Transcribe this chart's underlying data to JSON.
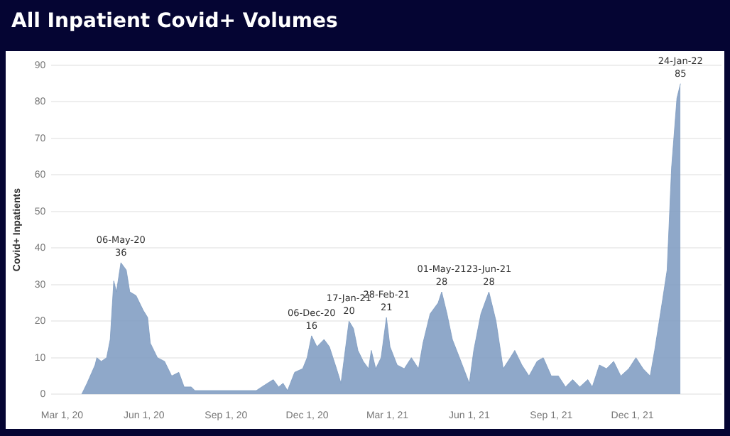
{
  "chart_data": {
    "type": "area",
    "title": "All Inpatient Covid+ Volumes",
    "ylabel": "Covid+ Inpatients",
    "x": [
      "2020-03-23",
      "2020-03-29",
      "2020-04-07",
      "2020-04-09",
      "2020-04-14",
      "2020-04-20",
      "2020-04-24",
      "2020-04-28",
      "2020-05-01",
      "2020-05-06",
      "2020-05-12",
      "2020-05-16",
      "2020-05-23",
      "2020-05-31",
      "2020-06-05",
      "2020-06-08",
      "2020-06-16",
      "2020-06-24",
      "2020-07-02",
      "2020-07-10",
      "2020-07-16",
      "2020-07-24",
      "2020-07-28",
      "2020-10-05",
      "2020-10-11",
      "2020-10-24",
      "2020-10-30",
      "2020-11-04",
      "2020-11-09",
      "2020-11-17",
      "2020-11-26",
      "2020-12-01",
      "2020-12-06",
      "2020-12-12",
      "2020-12-20",
      "2020-12-26",
      "2021-01-03",
      "2021-01-08",
      "2021-01-17",
      "2021-01-22",
      "2021-01-27",
      "2021-02-02",
      "2021-02-08",
      "2021-02-11",
      "2021-02-16",
      "2021-02-22",
      "2021-02-28",
      "2021-03-04",
      "2021-03-12",
      "2021-03-20",
      "2021-03-28",
      "2021-04-05",
      "2021-04-10",
      "2021-04-18",
      "2021-04-27",
      "2021-05-01",
      "2021-05-07",
      "2021-05-13",
      "2021-05-21",
      "2021-06-01",
      "2021-06-06",
      "2021-06-14",
      "2021-06-23",
      "2021-07-01",
      "2021-07-09",
      "2021-07-17",
      "2021-07-22",
      "2021-07-30",
      "2021-08-07",
      "2021-08-16",
      "2021-08-23",
      "2021-09-01",
      "2021-09-09",
      "2021-09-17",
      "2021-09-25",
      "2021-10-03",
      "2021-10-12",
      "2021-10-17",
      "2021-10-25",
      "2021-11-02",
      "2021-11-10",
      "2021-11-18",
      "2021-11-27",
      "2021-12-05",
      "2021-12-13",
      "2021-12-21",
      "2021-12-26",
      "2022-01-04",
      "2022-01-09",
      "2022-01-14",
      "2022-01-20",
      "2022-01-24"
    ],
    "series": [
      {
        "color": "#7b99bf",
        "values": [
          0,
          3,
          8,
          10,
          9,
          10,
          15,
          31,
          28,
          36,
          34,
          28,
          27,
          23,
          21,
          14,
          10,
          9,
          5,
          6,
          2,
          2,
          1,
          1,
          2,
          4,
          2,
          3,
          1,
          6,
          7,
          10,
          16,
          13,
          15,
          13,
          7,
          3,
          20,
          18,
          12,
          9,
          7,
          12,
          7,
          10,
          21,
          13,
          8,
          7,
          10,
          7,
          14,
          22,
          25,
          28,
          22,
          15,
          10,
          3,
          12,
          22,
          28,
          20,
          7,
          10,
          12,
          8,
          5,
          9,
          10,
          5,
          5,
          2,
          4,
          2,
          4,
          2,
          8,
          7,
          9,
          5,
          7,
          10,
          7,
          5,
          12,
          26,
          34,
          62,
          81,
          85
        ]
      }
    ],
    "xlim": [
      "2020-02-18",
      "2022-03-11"
    ],
    "xticks": [
      {
        "value": "2020-03-01",
        "label": "Mar 1, 20"
      },
      {
        "value": "2020-06-01",
        "label": "Jun 1, 20"
      },
      {
        "value": "2020-09-01",
        "label": "Sep 1, 20"
      },
      {
        "value": "2020-12-01",
        "label": "Dec 1, 20"
      },
      {
        "value": "2021-03-01",
        "label": "Mar 1, 21"
      },
      {
        "value": "2021-06-01",
        "label": "Jun 1, 21"
      },
      {
        "value": "2021-09-01",
        "label": "Sep 1, 21"
      },
      {
        "value": "2021-12-01",
        "label": "Dec 1, 21"
      }
    ],
    "ylim": [
      0,
      90
    ],
    "yticks": [
      0,
      10,
      20,
      30,
      40,
      50,
      60,
      70,
      80,
      90
    ],
    "grid": "y",
    "annotations": [
      {
        "text": "06-May-20\n36",
        "x": "2020-05-06",
        "y": 36
      },
      {
        "text": "06-Dec-20\n16",
        "x": "2020-12-06",
        "y": 16
      },
      {
        "text": "17-Jan-21\n20",
        "x": "2021-01-17",
        "y": 20
      },
      {
        "text": "28-Feb-21\n21",
        "x": "2021-02-28",
        "y": 21
      },
      {
        "text": "01-May-21\n28",
        "x": "2021-05-01",
        "y": 28
      },
      {
        "text": "23-Jun-21\n28",
        "x": "2021-06-23",
        "y": 28
      },
      {
        "text": "24-Jan-22\n85",
        "x": "2022-01-24",
        "y": 85
      }
    ]
  }
}
